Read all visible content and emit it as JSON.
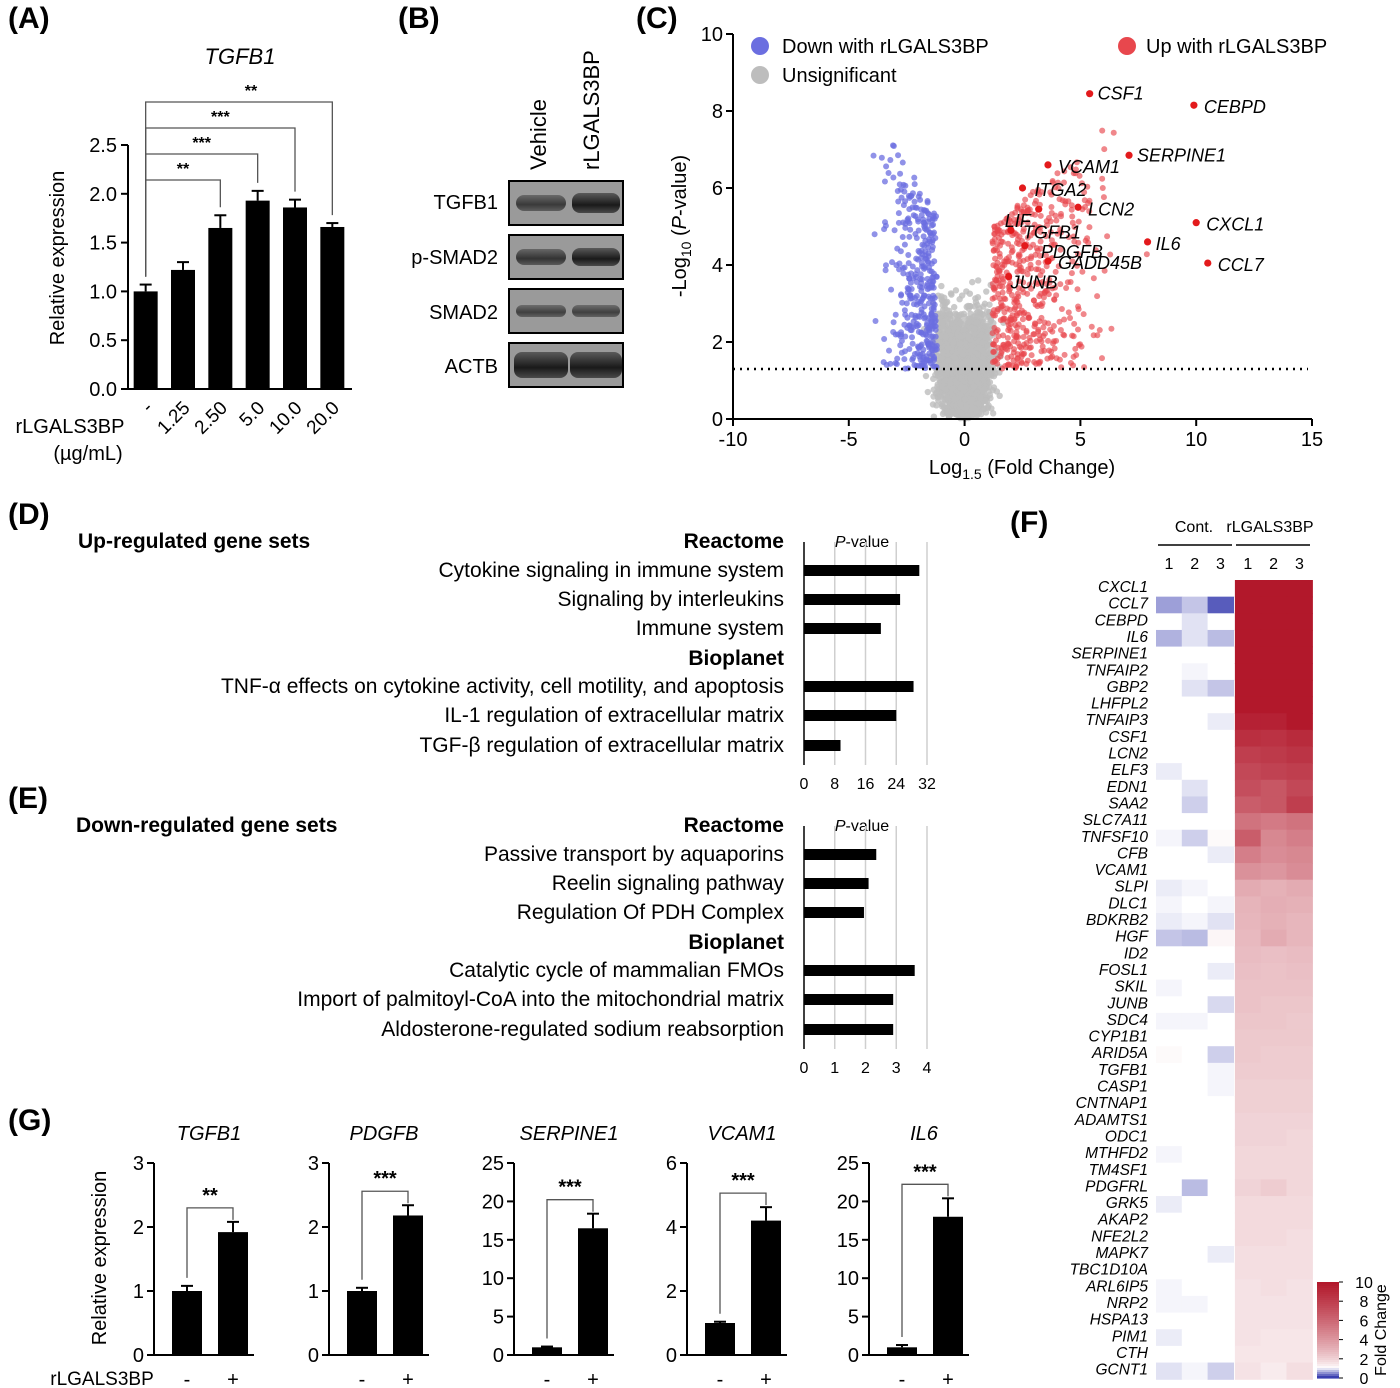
{
  "panels": {
    "A": "(A)",
    "B": "(B)",
    "C": "(C)",
    "D": "(D)",
    "E": "(E)",
    "F": "(F)",
    "G": "(G)"
  },
  "colors": {
    "bar": "#000000",
    "up": "#e8474d",
    "down": "#6b6ee0",
    "unsig": "#bdbdbd",
    "heat_high": "#b2182b",
    "heat_low": "#3a3fb0"
  },
  "panelA": {
    "title": "TGFB1",
    "ylabel": "Relative expression",
    "xlabel_line1": "rLGALS3BP",
    "xlabel_line2": "(µg/mL)"
  },
  "panelB": {
    "lanes": [
      "Vehicle",
      "rLGALS3BP"
    ],
    "proteins": [
      "TGFB1",
      "p-SMAD2",
      "SMAD2",
      "ACTB"
    ]
  },
  "panelC": {
    "legend_down": "Down with rLGALS3BP",
    "legend_up": "Up with rLGALS3BP",
    "legend_unsig": "Unsignificant",
    "xlabel": "Log1.5 (Fold Change)",
    "ylabel": "-Log10 (P-value)"
  },
  "panelD": {
    "heading": "Up-regulated gene sets",
    "db1": "Reactome",
    "db2": "Bioplanet",
    "pvalue_label": "P-value"
  },
  "panelE": {
    "heading": "Down-regulated gene sets",
    "db1": "Reactome",
    "db2": "Bioplanet",
    "pvalue_label": "P-value"
  },
  "panelF": {
    "group_cont": "Cont.",
    "group_treat": "rLGALS3BP",
    "replicates": [
      "1",
      "2",
      "3",
      "1",
      "2",
      "3"
    ],
    "scale_label": "Fold Change"
  },
  "panelG": {
    "ylabel": "Relative expression",
    "xlabel": "rLGALS3BP",
    "conditions": [
      "-",
      "+"
    ]
  },
  "chart_data": [
    {
      "id": "A",
      "type": "bar",
      "title": "TGFB1",
      "ylabel": "Relative expression",
      "categories": [
        "-",
        "1.25",
        "2.50",
        "5.0",
        "10.0",
        "20.0"
      ],
      "values": [
        1.0,
        1.22,
        1.65,
        1.93,
        1.86,
        1.66
      ],
      "errors": [
        0.07,
        0.08,
        0.13,
        0.1,
        0.08,
        0.04
      ],
      "ylim": [
        0,
        2.5
      ],
      "yticks": [
        "0.0",
        "0.5",
        "1.0",
        "1.5",
        "2.0",
        "2.5"
      ],
      "significance": [
        {
          "from": 0,
          "to": 2,
          "label": "**"
        },
        {
          "from": 0,
          "to": 3,
          "label": "***"
        },
        {
          "from": 0,
          "to": 4,
          "label": "***"
        },
        {
          "from": 0,
          "to": 5,
          "label": "**"
        }
      ]
    },
    {
      "id": "C",
      "type": "scatter",
      "xlim": [
        -10,
        15
      ],
      "ylim": [
        0,
        10
      ],
      "xticks": [
        "-10",
        "-5",
        "0",
        "5",
        "10",
        "15"
      ],
      "yticks": [
        "0",
        "2",
        "4",
        "6",
        "8",
        "10"
      ],
      "threshold_y": 1.3,
      "labeled_points": [
        {
          "gene": "CSF1",
          "x": 5.4,
          "y": 8.45
        },
        {
          "gene": "CEBPD",
          "x": 9.9,
          "y": 8.15
        },
        {
          "gene": "VCAM1",
          "x": 3.6,
          "y": 6.6
        },
        {
          "gene": "SERPINE1",
          "x": 7.1,
          "y": 6.85
        },
        {
          "gene": "ITGA2",
          "x": 2.5,
          "y": 6.0
        },
        {
          "gene": "LIF",
          "x": 3.2,
          "y": 5.45
        },
        {
          "gene": "LCN2",
          "x": 4.9,
          "y": 5.5
        },
        {
          "gene": "CXCL1",
          "x": 10.0,
          "y": 5.1
        },
        {
          "gene": "TGFB1",
          "x": 2.0,
          "y": 4.9
        },
        {
          "gene": "IL6",
          "x": 7.9,
          "y": 4.6
        },
        {
          "gene": "PDGFB",
          "x": 2.6,
          "y": 4.5
        },
        {
          "gene": "GADD45B",
          "x": 3.6,
          "y": 4.1
        },
        {
          "gene": "CCL7",
          "x": 10.5,
          "y": 4.05
        },
        {
          "gene": "JUNB",
          "x": 1.9,
          "y": 3.7
        }
      ]
    },
    {
      "id": "D",
      "type": "bar",
      "orientation": "horizontal",
      "categories": [
        "Cytokine signaling in immune system",
        "Signaling by interleukins",
        "Immune system",
        "TNF-α effects on cytokine activity, cell motility, and apoptosis",
        "IL-1 regulation of extracellular matrix",
        "TGF-β regulation of extracellular matrix"
      ],
      "groups": [
        "Reactome",
        "Reactome",
        "Reactome",
        "Bioplanet",
        "Bioplanet",
        "Bioplanet"
      ],
      "values": [
        30,
        25,
        20,
        28.5,
        24,
        9.5
      ],
      "xlim": [
        0,
        32
      ],
      "xticks": [
        "0",
        "8",
        "16",
        "24",
        "32"
      ],
      "xlabel": "P-value"
    },
    {
      "id": "E",
      "type": "bar",
      "orientation": "horizontal",
      "categories": [
        "Passive transport by aquaporins",
        "Reelin signaling pathway",
        "Regulation Of PDH Complex",
        "Catalytic cycle of mammalian FMOs",
        "Import of palmitoyl-CoA into the mitochondrial matrix",
        "Aldosterone-regulated sodium reabsorption"
      ],
      "groups": [
        "Reactome",
        "Reactome",
        "Reactome",
        "Bioplanet",
        "Bioplanet",
        "Bioplanet"
      ],
      "values": [
        2.35,
        2.1,
        1.95,
        3.6,
        2.9,
        2.9
      ],
      "xlim": [
        0,
        4
      ],
      "xticks": [
        "0",
        "1",
        "2",
        "3",
        "4"
      ],
      "xlabel": "P-value"
    },
    {
      "id": "F",
      "type": "heatmap",
      "columns": [
        "Cont. 1",
        "Cont. 2",
        "Cont. 3",
        "rLGALS3BP 1",
        "rLGALS3BP 2",
        "rLGALS3BP 3"
      ],
      "colorbar": {
        "min": 0,
        "max": 10,
        "ticks": [
          "0",
          "2",
          "4",
          "6",
          "8",
          "10"
        ],
        "label": "Fold Change"
      },
      "rows": [
        "CXCL1",
        "CCL7",
        "CEBPD",
        "IL6",
        "SERPINE1",
        "TNFAIP2",
        "GBP2",
        "LHFPL2",
        "TNFAIP3",
        "CSF1",
        "LCN2",
        "ELF3",
        "EDN1",
        "SAA2",
        "SLC7A11",
        "TNFSF10",
        "CFB",
        "VCAM1",
        "SLPI",
        "DLC1",
        "BDKRB2",
        "HGF",
        "ID2",
        "FOSL1",
        "SKIL",
        "JUNB",
        "SDC4",
        "CYP1B1",
        "ARID5A",
        "TGFB1",
        "CASP1",
        "CNTNAP1",
        "ADAMTS1",
        "ODC1",
        "MTHFD2",
        "TM4SF1",
        "PDGFRL",
        "GRK5",
        "AKAP2",
        "NFE2L2",
        "MAPK7",
        "TBC1D10A",
        "ARL6IP5",
        "NRP2",
        "HSPA13",
        "PIM1",
        "CTH",
        "GCNT1"
      ],
      "values": [
        [
          1,
          1,
          1,
          10,
          10,
          10
        ],
        [
          0.5,
          0.7,
          0.15,
          10,
          10,
          10
        ],
        [
          1,
          0.85,
          1,
          10,
          10,
          10
        ],
        [
          0.6,
          0.85,
          0.65,
          10,
          10,
          10
        ],
        [
          1,
          1,
          1,
          10,
          10,
          10
        ],
        [
          1,
          0.95,
          1,
          10,
          10,
          10
        ],
        [
          1,
          0.85,
          0.7,
          10,
          10,
          10
        ],
        [
          1,
          1,
          1,
          10,
          10,
          10
        ],
        [
          1,
          1,
          0.9,
          9.5,
          9.5,
          10
        ],
        [
          1,
          1,
          1,
          8.8,
          8.6,
          9
        ],
        [
          1,
          1,
          1,
          8,
          8.2,
          8.5
        ],
        [
          0.9,
          1,
          1,
          7.5,
          7.8,
          8
        ],
        [
          1,
          0.85,
          1,
          7.2,
          6.8,
          7.5
        ],
        [
          1,
          0.75,
          1,
          6.5,
          6.8,
          8
        ],
        [
          1,
          1,
          1,
          5.5,
          5.2,
          5.5
        ],
        [
          0.95,
          0.75,
          1.05,
          6.5,
          4.6,
          5
        ],
        [
          1,
          1,
          0.9,
          5,
          4.4,
          4.6
        ],
        [
          1,
          1,
          1,
          4.2,
          4,
          4.4
        ],
        [
          0.9,
          0.95,
          1,
          3.2,
          3,
          3.2
        ],
        [
          0.95,
          1,
          0.95,
          2.9,
          3.1,
          3
        ],
        [
          0.9,
          0.95,
          0.85,
          2.8,
          3,
          2.8
        ],
        [
          0.7,
          0.65,
          1.1,
          2.7,
          3.2,
          2.8
        ],
        [
          1,
          1,
          1,
          2.6,
          2.5,
          2.6
        ],
        [
          1,
          1,
          0.9,
          2.5,
          2.4,
          2.5
        ],
        [
          0.95,
          1,
          1,
          2.4,
          2.4,
          2.4
        ],
        [
          1,
          1,
          0.8,
          2.4,
          2.3,
          2.3
        ],
        [
          0.95,
          0.95,
          1,
          2.3,
          2.3,
          2.2
        ],
        [
          1,
          1,
          1,
          2.2,
          2.2,
          2.2
        ],
        [
          1.05,
          1,
          0.75,
          2.2,
          2.1,
          2.1
        ],
        [
          1,
          1,
          0.95,
          2.1,
          2.1,
          2.1
        ],
        [
          1,
          1,
          0.95,
          2,
          2,
          2
        ],
        [
          1,
          1,
          1,
          2,
          2,
          2
        ],
        [
          1,
          1,
          1,
          1.9,
          1.9,
          1.9
        ],
        [
          1,
          1,
          1,
          1.9,
          1.9,
          1.8
        ],
        [
          0.95,
          1,
          1,
          1.8,
          1.8,
          1.8
        ],
        [
          1,
          1,
          1,
          1.8,
          1.8,
          1.8
        ],
        [
          1,
          0.65,
          1,
          1.9,
          2.1,
          1.8
        ],
        [
          0.9,
          1,
          1,
          1.7,
          1.7,
          1.7
        ],
        [
          1,
          1,
          1,
          1.7,
          1.7,
          1.7
        ],
        [
          1,
          1,
          1,
          1.7,
          1.7,
          1.6
        ],
        [
          1,
          1,
          0.9,
          1.6,
          1.6,
          1.6
        ],
        [
          1,
          1,
          1,
          1.6,
          1.6,
          1.6
        ],
        [
          0.95,
          1,
          1,
          1.5,
          1.6,
          1.5
        ],
        [
          0.95,
          0.95,
          1,
          1.5,
          1.5,
          1.5
        ],
        [
          1,
          1,
          1,
          1.5,
          1.5,
          1.5
        ],
        [
          0.9,
          1,
          1,
          1.5,
          1.4,
          1.4
        ],
        [
          1,
          1,
          1,
          1.4,
          1.4,
          1.4
        ],
        [
          0.85,
          0.95,
          0.75,
          1.5,
          1.3,
          1.6
        ]
      ]
    },
    {
      "id": "G",
      "type": "bar",
      "subplots": [
        {
          "title": "TGFB1",
          "categories": [
            "-",
            "+"
          ],
          "values": [
            1.0,
            1.92
          ],
          "errors": [
            0.08,
            0.16
          ],
          "ylim": [
            0,
            3
          ],
          "yticks": [
            "0",
            "1",
            "2",
            "3"
          ],
          "significance": "**"
        },
        {
          "title": "PDGFB",
          "categories": [
            "-",
            "+"
          ],
          "values": [
            1.0,
            2.18
          ],
          "errors": [
            0.05,
            0.16
          ],
          "ylim": [
            0,
            3
          ],
          "yticks": [
            "0",
            "1",
            "2",
            "3"
          ],
          "significance": "***"
        },
        {
          "title": "SERPINE1",
          "categories": [
            "-",
            "+"
          ],
          "values": [
            1.0,
            16.5
          ],
          "errors": [
            0.1,
            1.9
          ],
          "ylim": [
            0,
            25
          ],
          "yticks": [
            "0",
            "5",
            "10",
            "15",
            "20",
            "25"
          ],
          "significance": "***"
        },
        {
          "title": "VCAM1",
          "categories": [
            "-",
            "+"
          ],
          "values": [
            1.0,
            4.2
          ],
          "errors": [
            0.04,
            0.42
          ],
          "ylim": [
            0,
            6
          ],
          "yticks": [
            "0",
            "2",
            "4",
            "6"
          ],
          "significance": "***"
        },
        {
          "title": "IL6",
          "categories": [
            "-",
            "+"
          ],
          "values": [
            1.0,
            18.0
          ],
          "errors": [
            0.3,
            2.4
          ],
          "ylim": [
            0,
            25
          ],
          "yticks": [
            "0",
            "5",
            "10",
            "15",
            "20",
            "25"
          ],
          "significance": "***"
        }
      ]
    }
  ]
}
